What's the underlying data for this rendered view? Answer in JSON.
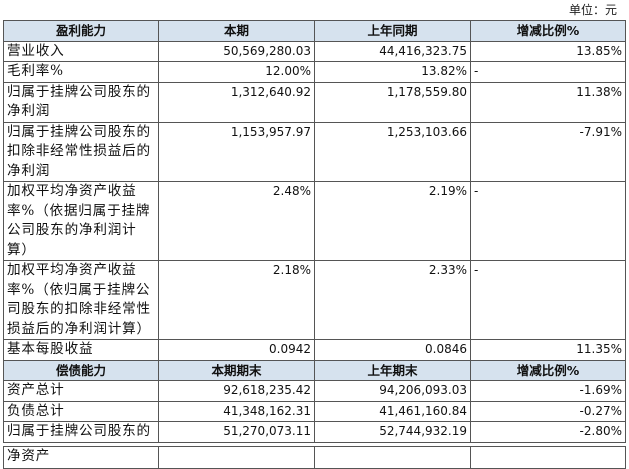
{
  "unit": "单位：元",
  "sections": [
    {
      "header": [
        "盈利能力",
        "本期",
        "上年同期",
        "增减比例%"
      ],
      "rows": [
        [
          "营业收入",
          "50,569,280.03",
          "44,416,323.75",
          "13.85%"
        ],
        [
          "毛利率%",
          "12.00%",
          "13.82%",
          "-"
        ],
        [
          "归属于挂牌公司股东的净利润",
          "1,312,640.92",
          "1,178,559.80",
          "11.38%"
        ],
        [
          "归属于挂牌公司股东的扣除非经常性损益后的净利润",
          "1,153,957.97",
          "1,253,103.66",
          "-7.91%"
        ],
        [
          "加权平均净资产收益率%（依据归属于挂牌公司股东的净利润计算）",
          "2.48%",
          "2.19%",
          "-"
        ],
        [
          "加权平均净资产收益率%（依归属于挂牌公司股东的扣除非经常性损益后的净利润计算）",
          "2.18%",
          "2.33%",
          "-"
        ],
        [
          "基本每股收益",
          "0.0942",
          "0.0846",
          "11.35%"
        ]
      ]
    },
    {
      "header": [
        "偿债能力",
        "本期期末",
        "上年期末",
        "增减比例%"
      ],
      "rows": [
        [
          "资产总计",
          "92,618,235.42",
          "94,206,093.03",
          "-1.69%"
        ],
        [
          "负债总计",
          "41,348,162.31",
          "41,461,160.84",
          "-0.27%"
        ],
        [
          "归属于挂牌公司股东的",
          "51,270,073.11",
          "52,744,932.19",
          "-2.80%"
        ],
        [
          "净资产"
        ]
      ]
    }
  ]
}
